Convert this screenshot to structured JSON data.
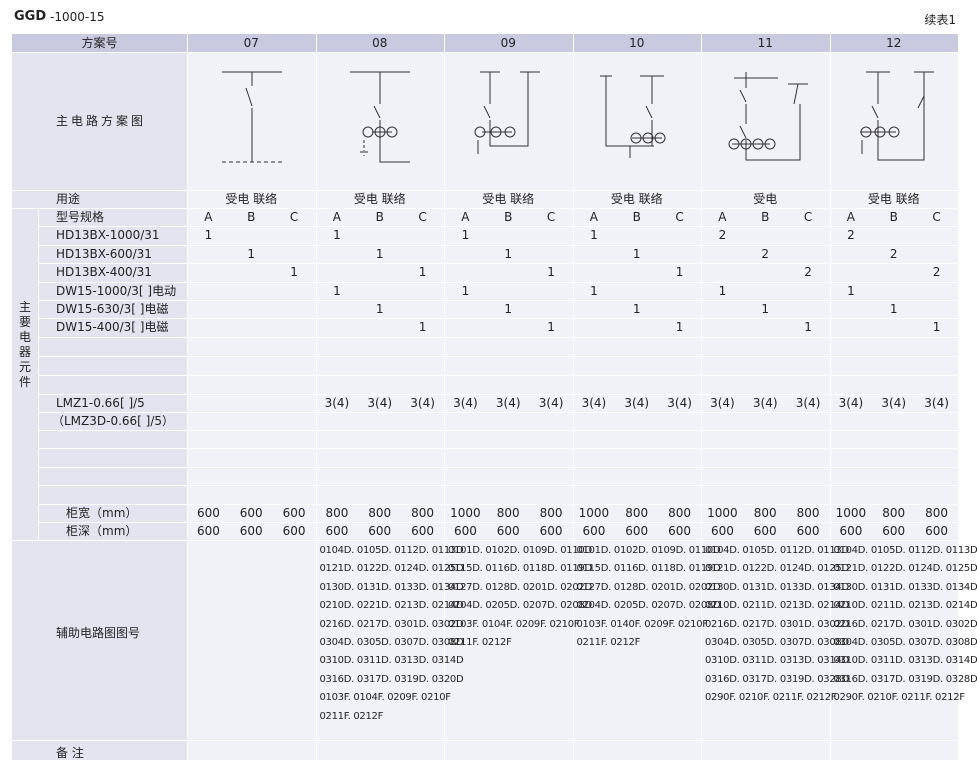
{
  "header": {
    "title": "GGD",
    "subtitle": "-1000-15",
    "continued": "续表1"
  },
  "table": {
    "scheme_label": "方案号",
    "schemes": [
      "07",
      "08",
      "09",
      "10",
      "11",
      "12"
    ],
    "diagram_label": "主电路方案图",
    "purpose_label": "用途",
    "purposes": [
      "受电 联络",
      "受电 联络",
      "受电 联络",
      "受电 联络",
      "受电",
      "受电 联络"
    ],
    "spec_label": "型号规格",
    "sub_columns": [
      "A",
      "B",
      "C"
    ],
    "side_label": "主要电器元件",
    "components": [
      {
        "name": "HD13BX-1000/31",
        "values": [
          1,
          null,
          null,
          1,
          null,
          null,
          1,
          null,
          null,
          1,
          null,
          null,
          2,
          null,
          null,
          2,
          null,
          null
        ]
      },
      {
        "name": "HD13BX-600/31",
        "values": [
          null,
          1,
          null,
          null,
          1,
          null,
          null,
          1,
          null,
          null,
          1,
          null,
          null,
          2,
          null,
          null,
          2,
          null
        ]
      },
      {
        "name": "HD13BX-400/31",
        "values": [
          null,
          null,
          1,
          null,
          null,
          1,
          null,
          null,
          1,
          null,
          null,
          1,
          null,
          null,
          2,
          null,
          null,
          2
        ]
      },
      {
        "name": "DW15-1000/3[ ]电动",
        "values": [
          null,
          null,
          null,
          1,
          null,
          null,
          1,
          null,
          null,
          1,
          null,
          null,
          1,
          null,
          null,
          1,
          null,
          null
        ]
      },
      {
        "name": "DW15-630/3[ ]电磁",
        "values": [
          null,
          null,
          null,
          null,
          1,
          null,
          null,
          1,
          null,
          null,
          1,
          null,
          null,
          1,
          null,
          null,
          1,
          null
        ]
      },
      {
        "name": "DW15-400/3[ ]电磁",
        "values": [
          null,
          null,
          null,
          null,
          null,
          1,
          null,
          null,
          1,
          null,
          null,
          1,
          null,
          null,
          1,
          null,
          null,
          1
        ]
      }
    ],
    "ct": {
      "name": "LMZ1-0.66[ ]/5",
      "note": "（LMZ3D-0.66[ ]/5）",
      "values": [
        null,
        null,
        null,
        "3(4)",
        "3(4)",
        "3(4)",
        "3(4)",
        "3(4)",
        "3(4)",
        "3(4)",
        "3(4)",
        "3(4)",
        "3(4)",
        "3(4)",
        "3(4)",
        "3(4)",
        "3(4)",
        "3(4)"
      ]
    },
    "width": {
      "label": "柜宽（mm）",
      "values": [
        600,
        600,
        600,
        800,
        800,
        800,
        1000,
        800,
        800,
        1000,
        800,
        800,
        1000,
        800,
        800,
        1000,
        800,
        800
      ]
    },
    "depth": {
      "label": "柜深（mm）",
      "values": [
        600,
        600,
        600,
        600,
        600,
        600,
        600,
        600,
        600,
        600,
        600,
        600,
        600,
        600,
        600,
        600,
        600,
        600
      ]
    },
    "aux_label": "辅助电路图图号",
    "aux": [
      [],
      [
        "0104D. 0105D. 0112D. 0113D",
        "0121D. 0122D. 0124D. 0125D",
        "0130D. 0131D. 0133D. 0134D",
        "0210D. 0221D. 0213D. 0214D",
        "0216D. 0217D. 0301D. 0302D",
        "0304D. 0305D. 0307D. 0308D",
        "0310D. 0311D. 0313D. 0314D",
        "0316D. 0317D. 0319D. 0320D",
        "0103F. 0104F. 0209F. 0210F",
        "0211F. 0212F"
      ],
      [
        "0101D. 0102D. 0109D. 0110D",
        "0115D. 0116D. 0118D. 0119D",
        "0127D. 0128D. 0201D. 0202D",
        "0204D. 0205D. 0207D. 0208D",
        "0103F. 0104F. 0209F. 0210F",
        "0211F. 0212F"
      ],
      [
        "0101D. 0102D. 0109D. 0110D",
        "0115D. 0116D. 0118D. 0119D",
        "0127D. 0128D. 0201D. 0202D",
        "0204D. 0205D. 0207D. 0208D",
        "0103F. 0140F. 0209F. 0210F",
        "0211F. 0212F"
      ],
      [
        "0104D. 0105D. 0112D. 0113D",
        "0121D. 0122D. 0124D. 0125D",
        "0130D. 0131D. 0133D. 0134D",
        "0210D. 0211D. 0213D. 0214D",
        "0216D. 0217D. 0301D. 0302D",
        "0304D. 0305D. 0307D. 0308D",
        "0310D. 0311D. 0313D. 0314D",
        "0316D. 0317D. 0319D. 0328D",
        "0290F. 0210F. 0211F. 0212F"
      ],
      [
        "0104D. 0105D. 0112D. 0113D",
        "0121D. 0122D. 0124D. 0125D",
        "0130D. 0131D. 0133D. 0134D",
        "0210D. 0211D. 0213D. 0214D",
        "0216D. 0217D. 0301D. 0302D",
        "0304D. 0305D. 0307D. 0308D",
        "0310D. 0311D. 0313D. 0314D",
        "0316D. 0317D. 0319D. 0328D",
        "0290F. 0210F. 0211F. 0212F"
      ]
    ],
    "remarks_label": "备 注"
  }
}
